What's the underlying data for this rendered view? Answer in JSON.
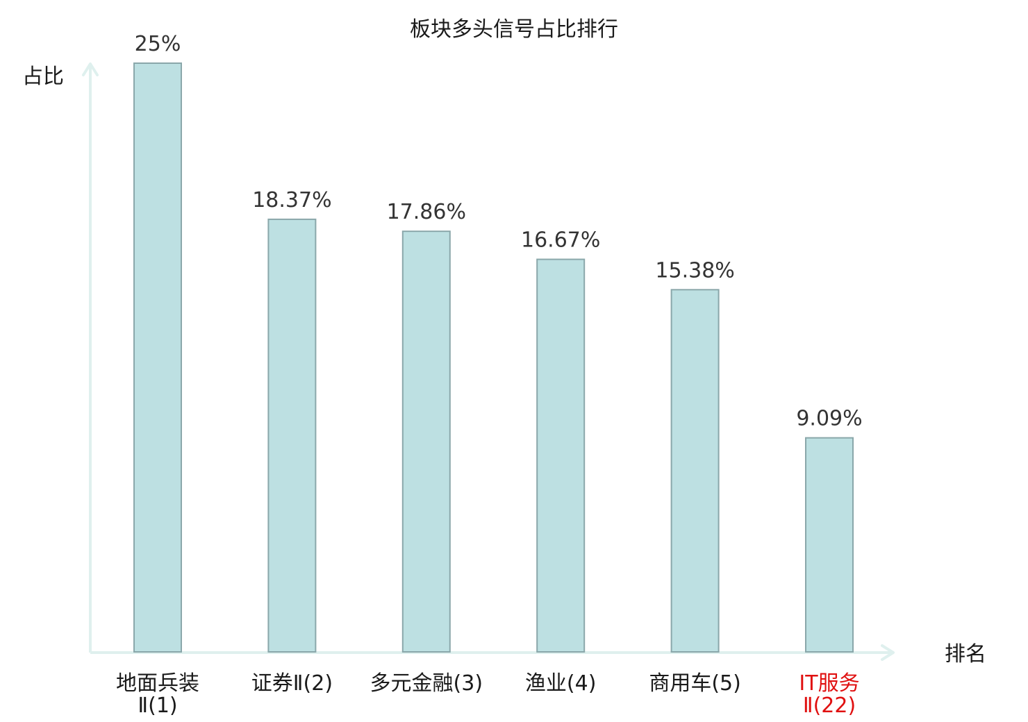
{
  "chart_data": {
    "type": "bar",
    "title": "板块多头信号占比排行",
    "ylabel": "占比",
    "xlabel": "排名",
    "ylim": [
      0,
      25
    ],
    "grid": false,
    "categories": [
      [
        "地面兵装",
        "Ⅱ(1)"
      ],
      [
        "证券Ⅱ(2)"
      ],
      [
        "多元金融(3)"
      ],
      [
        "渔业(4)"
      ],
      [
        "商用车(5)"
      ],
      [
        "IT服务",
        "Ⅱ(22)"
      ]
    ],
    "values": [
      25,
      18.37,
      17.86,
      16.67,
      15.38,
      9.09
    ],
    "value_labels": [
      "25%",
      "18.37%",
      "17.86%",
      "16.67%",
      "15.38%",
      "9.09%"
    ],
    "highlight_index": 5
  },
  "colors": {
    "bar_fill": "#bde0e2",
    "bar_stroke": "#8aa7aa",
    "axis": "#dff0ee",
    "highlight_text": "#e01010"
  }
}
